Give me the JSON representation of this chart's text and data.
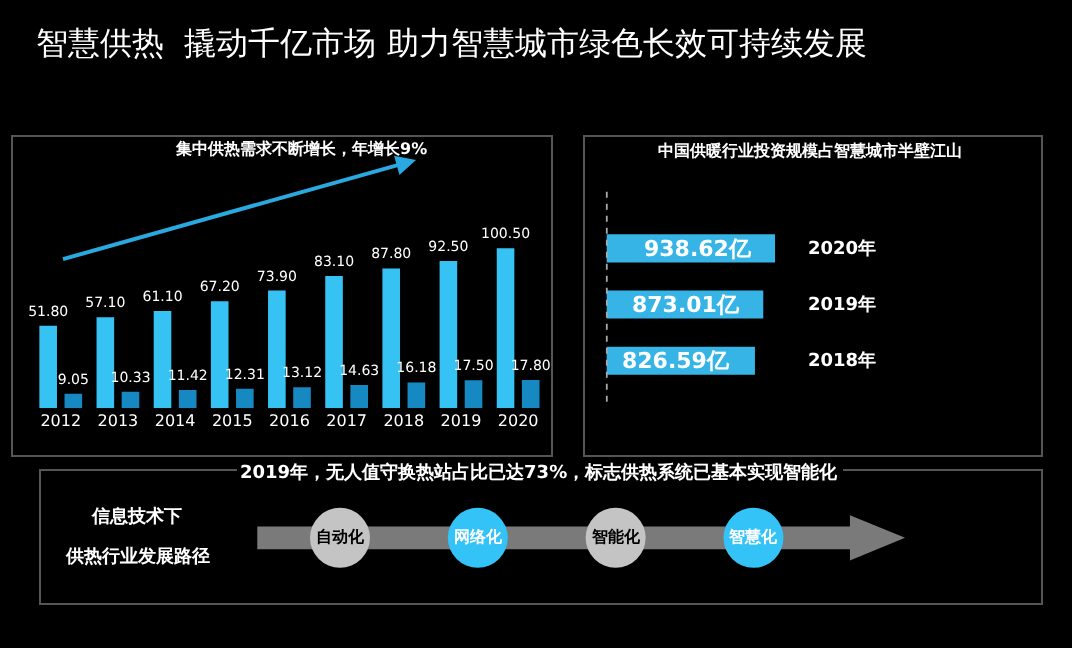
{
  "chart_data": [
    {
      "type": "bar",
      "title": "智慧供热  撬动千亿市场 助力智慧城市绿色长效可持续发展",
      "subtitle": "集中供热需求不断增长，年增长9%",
      "categories": [
        "2012",
        "2013",
        "2014",
        "2015",
        "2016",
        "2017",
        "2018",
        "2019",
        "2020"
      ],
      "series": [
        {
          "color": "#36c3f4",
          "values": [
            51.8,
            57.1,
            61.1,
            67.2,
            73.9,
            83.1,
            87.8,
            92.5,
            100.5
          ],
          "value_labels": [
            "51.80",
            "57.10",
            "61.10",
            "67.20",
            "73.90",
            "83.10",
            "87.80",
            "92.50",
            "100.50"
          ]
        },
        {
          "color": "#1689c2",
          "values": [
            9.05,
            10.33,
            11.42,
            12.31,
            13.12,
            14.63,
            16.18,
            17.5,
            17.8
          ],
          "value_labels": [
            "9.05",
            "10.33",
            "11.42",
            "12.31",
            "13.12",
            "14.63",
            "16.18",
            "17.50",
            "17.80"
          ]
        }
      ],
      "tick_labels": "x",
      "grid": false
    },
    {
      "type": "bar",
      "orientation": "horizontal",
      "title": "中国供暖行业投资规模占智慧城市半壁江山",
      "categories": [
        "2020年",
        "2019年",
        "2018年"
      ],
      "values": [
        938.62,
        873.01,
        826.59
      ],
      "color": "#36b4e6",
      "value_labels": [
        "938.62亿",
        "873.01亿",
        "826.59亿"
      ],
      "tick_labels": false,
      "grid": false
    },
    {
      "type": "other",
      "title": "2019年，无人值守换热站占比已达73%，标志供热系统已基本实现智能化",
      "categories": [
        "自动化",
        "网络化",
        "智能化",
        "智慧化"
      ],
      "colors": [
        "#c4c4c4",
        "#33c3f6",
        "#c4c4c4",
        "#33c3f6"
      ],
      "annotations": [
        "信息技术下",
        "供热行业发展路径"
      ]
    }
  ]
}
